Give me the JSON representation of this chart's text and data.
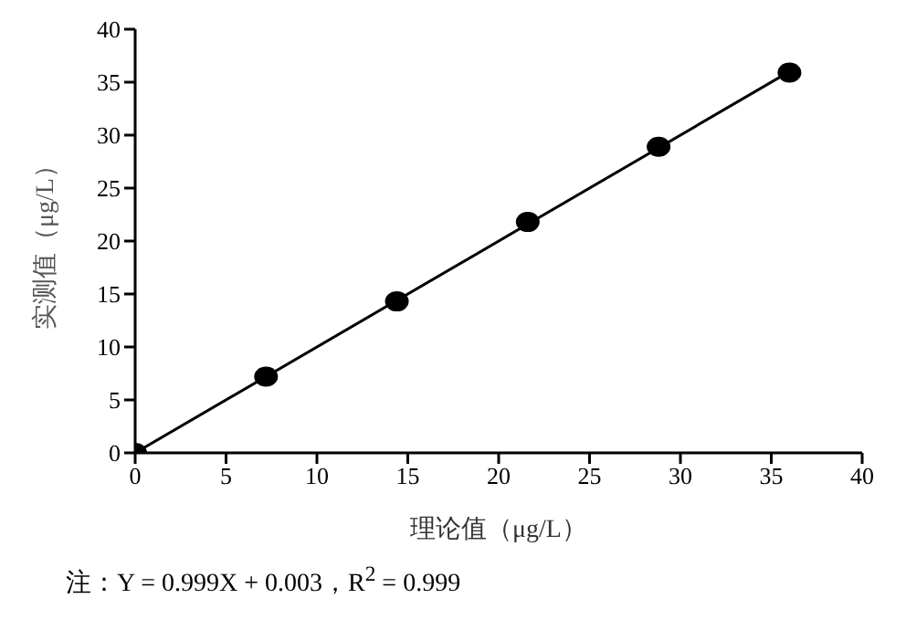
{
  "chart_data": {
    "type": "scatter",
    "xlabel": "理论值（μg/L）",
    "ylabel": "实测值（μg/L）",
    "annotations": [
      "注：Y = 0.999X + 0.003，R$^{2}$ = 0.999"
    ],
    "xlim": [
      0,
      40
    ],
    "xticks": [
      0,
      5,
      10,
      15,
      20,
      25,
      30,
      35,
      40
    ],
    "ylim": [
      0,
      40
    ],
    "yticks": [
      0,
      5,
      10,
      15,
      20,
      25,
      30,
      35,
      40
    ],
    "grid": false,
    "legend": false,
    "marker": "circle",
    "x": [
      0,
      7.2,
      14.4,
      21.6,
      28.8,
      36
    ],
    "series": [
      {
        "color": "#000000",
        "values": [
          0,
          7.2,
          14.3,
          21.8,
          28.9,
          35.9
        ]
      },
      {
        "type": "line",
        "color": "#000000",
        "x": [
          0,
          36
        ],
        "values": [
          0,
          36
        ],
        "marker": "none",
        "line_style": "solid"
      }
    ]
  }
}
